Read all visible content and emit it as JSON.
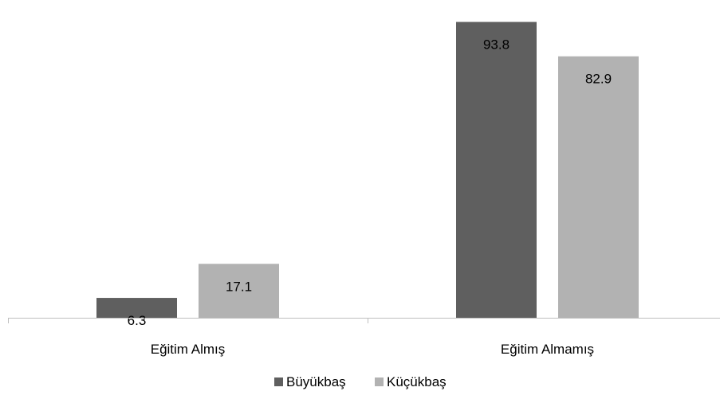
{
  "chart_data": {
    "type": "bar",
    "categories": [
      "Eğitim Almış",
      "Eğitim Almamış"
    ],
    "series": [
      {
        "name": "Büyükbaş",
        "values": [
          6.3,
          93.8
        ],
        "color": "#5f5f5f"
      },
      {
        "name": "Küçükbaş",
        "values": [
          17.1,
          82.9
        ],
        "color": "#b2b2b2"
      }
    ],
    "value_labels": [
      [
        "6.3",
        "93.8"
      ],
      [
        "17.1",
        "82.9"
      ]
    ],
    "title": "",
    "xlabel": "",
    "ylabel": "",
    "ylim": [
      0,
      100
    ],
    "grid": false,
    "legend_position": "bottom",
    "axis_color": "#bfbfbf"
  }
}
